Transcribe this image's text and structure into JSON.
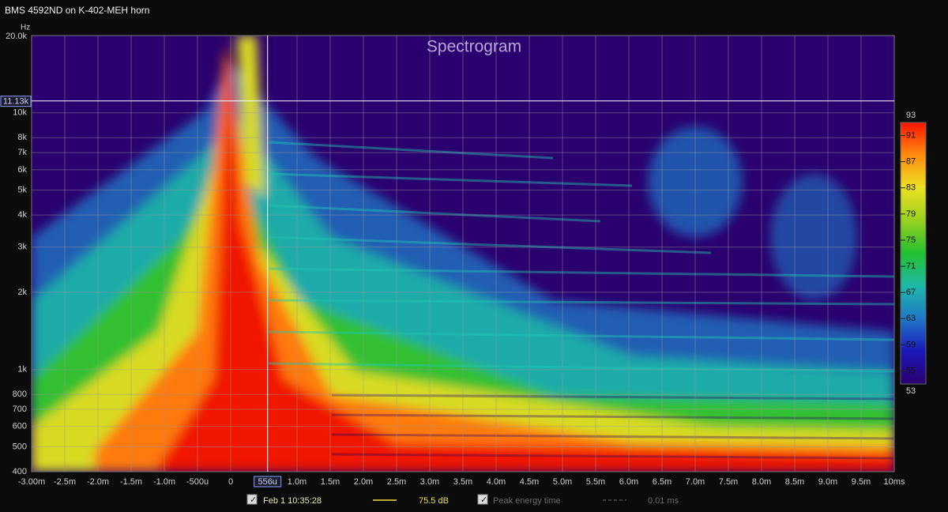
{
  "window_title": "BMS 4592ND on K-402-MEH horn",
  "chart_data": {
    "type": "spectrogram",
    "title": "Spectrogram",
    "y_label": "Hz",
    "xlim": [
      -3,
      10
    ],
    "xticks": [
      {
        "value": -3,
        "label": "-3.00m"
      },
      {
        "value": -2.5,
        "label": "-2.5m"
      },
      {
        "value": -2,
        "label": "-2.0m"
      },
      {
        "value": -1.5,
        "label": "-1.5m"
      },
      {
        "value": -1,
        "label": "-1.0m"
      },
      {
        "value": -0.5,
        "label": "-500u"
      },
      0,
      {
        "value": 1,
        "label": "1.0m"
      },
      {
        "value": 1.5,
        "label": "1.5m"
      },
      {
        "value": 2,
        "label": "2.0m"
      },
      {
        "value": 2.5,
        "label": "2.5m"
      },
      {
        "value": 3,
        "label": "3.0m"
      },
      {
        "value": 3.5,
        "label": "3.5m"
      },
      {
        "value": 4,
        "label": "4.0m"
      },
      {
        "value": 4.5,
        "label": "4.5m"
      },
      {
        "value": 5,
        "label": "5.0m"
      },
      {
        "value": 5.5,
        "label": "5.5m"
      },
      {
        "value": 6,
        "label": "6.0m"
      },
      {
        "value": 6.5,
        "label": "6.5m"
      },
      {
        "value": 7,
        "label": "7.0m"
      },
      {
        "value": 7.5,
        "label": "7.5m"
      },
      {
        "value": 8,
        "label": "8.0m"
      },
      {
        "value": 8.5,
        "label": "8.5m"
      },
      {
        "value": 9,
        "label": "9.0m"
      },
      {
        "value": 9.5,
        "label": "9.5m"
      },
      {
        "value": 10,
        "label": "10ms"
      }
    ],
    "ylim": [
      400,
      20000
    ],
    "log_y": true,
    "yticks": [
      400,
      500,
      600,
      700,
      800,
      {
        "value": 1000,
        "label": "1k"
      },
      {
        "value": 2000,
        "label": "2k"
      },
      {
        "value": 3000,
        "label": "3k"
      },
      {
        "value": 4000,
        "label": "4k"
      },
      {
        "value": 5000,
        "label": "5k"
      },
      {
        "value": 6000,
        "label": "6k"
      },
      {
        "value": 7000,
        "label": "7k"
      },
      {
        "value": 8000,
        "label": "8k"
      },
      {
        "value": 10000,
        "label": "10k"
      },
      {
        "value": 20000,
        "label": "20.0k"
      }
    ],
    "zlim": [
      53,
      93
    ],
    "zticks": [
      53,
      55,
      59,
      63,
      67,
      71,
      75,
      79,
      83,
      87,
      91,
      93
    ],
    "colormap": [
      "#2a006e",
      "#1c18b8",
      "#1f78c8",
      "#1fb8a8",
      "#20c030",
      "#98d020",
      "#ece020",
      "#ff8c10",
      "#ff1400"
    ],
    "cursor_x": {
      "value": 0.556,
      "label": "556u"
    },
    "cursor_y": {
      "value": 11130,
      "label": "11.13k"
    },
    "grid": true
  },
  "legend": {
    "trace_label": "Feb 1 10:35:28",
    "trace_value": "75.5 dB",
    "overlay_label": "Peak energy time",
    "overlay_value": "0.01 ms"
  }
}
